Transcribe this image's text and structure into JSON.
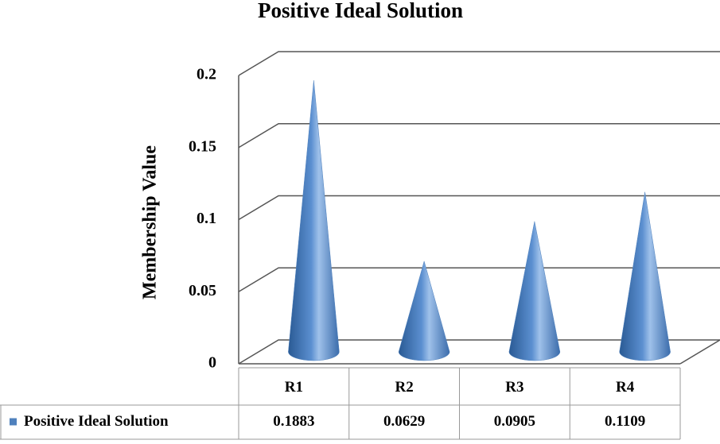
{
  "chart_data": {
    "type": "cone",
    "title": "Positive Ideal Solution",
    "y_label": "Membership Value",
    "categories": [
      "R1",
      "R2",
      "R3",
      "R4"
    ],
    "series": [
      {
        "name": "Positive Ideal Solution",
        "color": "#4f81bd",
        "values": [
          0.1883,
          0.0629,
          0.0905,
          0.1109
        ]
      }
    ],
    "ylim": [
      0,
      0.2
    ],
    "yticks": [
      0,
      0.05,
      0.1,
      0.15,
      0.2
    ],
    "grid": true,
    "legend": "data-table"
  }
}
